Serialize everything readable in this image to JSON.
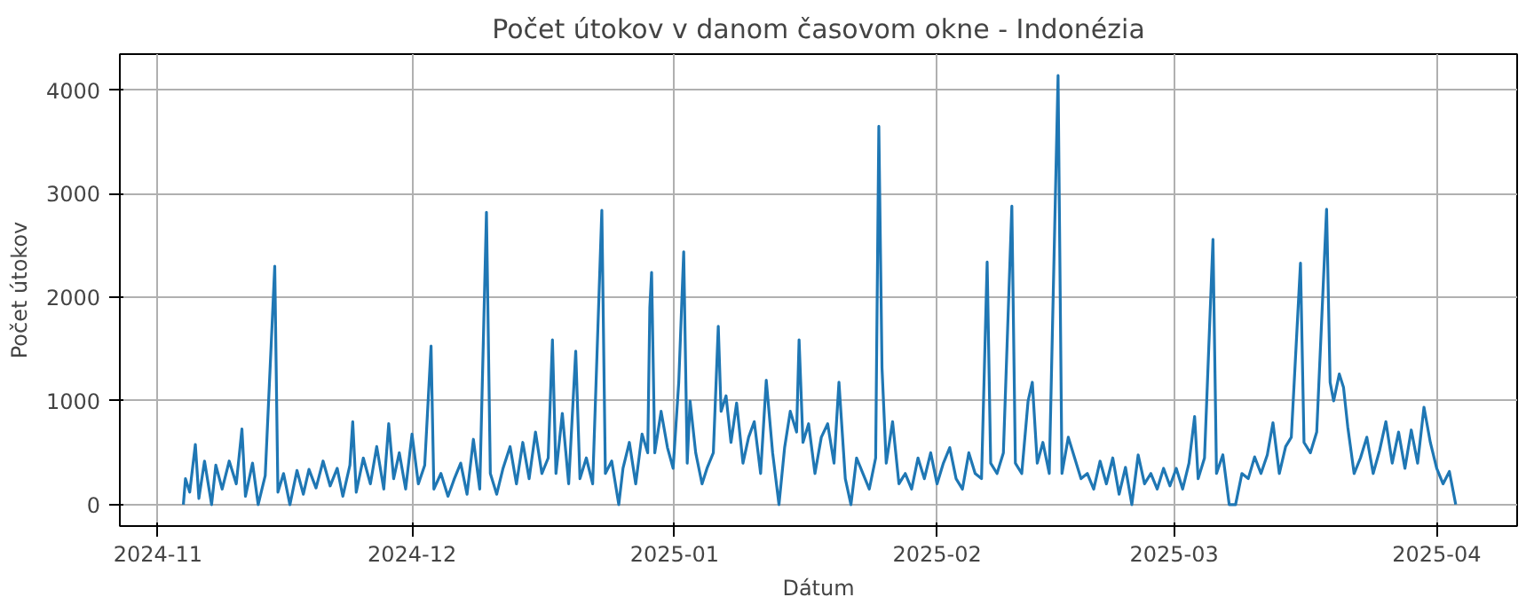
{
  "chart_data": {
    "type": "line",
    "title": "Počet útokov v danom časovom okne - Indonézia",
    "xlabel": "Dátum",
    "ylabel": "Počet útokov",
    "xlim": [
      "2024-10-27T12:00",
      "2025-04-10T12:00"
    ],
    "ylim": [
      -207,
      4347
    ],
    "xticks": [
      {
        "value": "2024-11-01",
        "label": "2024-11"
      },
      {
        "value": "2024-12-01",
        "label": "2024-12"
      },
      {
        "value": "2025-01-01",
        "label": "2025-01"
      },
      {
        "value": "2025-02-01",
        "label": "2025-02"
      },
      {
        "value": "2025-03-01",
        "label": "2025-03"
      },
      {
        "value": "2025-04-01",
        "label": "2025-04"
      }
    ],
    "yticks": [
      0,
      1000,
      2000,
      3000,
      4000
    ],
    "grid": true,
    "marker": "none",
    "line_style": "solid",
    "series": [
      {
        "color": "#1f77b4",
        "x": [
          "2024-11-04T00:00",
          "2024-11-04T06:00",
          "2024-11-04T18:00",
          "2024-11-05T10:00",
          "2024-11-05T20:00",
          "2024-11-06T12:00",
          "2024-11-07T08:00",
          "2024-11-07T20:00",
          "2024-11-08T14:00",
          "2024-11-09T10:00",
          "2024-11-10T06:00",
          "2024-11-10T22:00",
          "2024-11-11T08:00",
          "2024-11-12T04:00",
          "2024-11-12T20:00",
          "2024-11-13T16:00",
          "2024-11-14T19:00",
          "2024-11-15T04:00",
          "2024-11-15T20:00",
          "2024-11-16T14:00",
          "2024-11-17T10:00",
          "2024-11-18T04:00",
          "2024-11-18T20:00",
          "2024-11-19T16:00",
          "2024-11-20T12:00",
          "2024-11-21T08:00",
          "2024-11-22T04:00",
          "2024-11-22T20:00",
          "2024-11-23T16:00",
          "2024-11-24T00:00",
          "2024-11-24T10:00",
          "2024-11-25T06:00",
          "2024-11-26T02:00",
          "2024-11-26T20:00",
          "2024-11-27T16:00",
          "2024-11-28T06:00",
          "2024-11-28T20:00",
          "2024-11-29T12:00",
          "2024-11-30T06:00",
          "2024-12-01T00:00",
          "2024-12-01T18:00",
          "2024-12-02T12:00",
          "2024-12-03T06:00",
          "2024-12-03T14:00",
          "2024-12-04T10:00",
          "2024-12-05T06:00",
          "2024-12-06T00:00",
          "2024-12-06T18:00",
          "2024-12-07T12:00",
          "2024-12-08T06:00",
          "2024-12-09T00:00",
          "2024-12-09T19:00",
          "2024-12-10T06:00",
          "2024-12-11T00:00",
          "2024-12-11T18:00",
          "2024-12-12T14:00",
          "2024-12-13T08:00",
          "2024-12-14T02:00",
          "2024-12-14T20:00",
          "2024-12-15T14:00",
          "2024-12-16T08:00",
          "2024-12-17T02:00",
          "2024-12-17T14:00",
          "2024-12-18T00:00",
          "2024-12-18T18:00",
          "2024-12-19T12:00",
          "2024-12-20T08:00",
          "2024-12-20T20:00",
          "2024-12-21T14:00",
          "2024-12-22T08:00",
          "2024-12-23T10:00",
          "2024-12-23T20:00",
          "2024-12-24T14:00",
          "2024-12-25T10:00",
          "2024-12-25T22:00",
          "2024-12-26T16:00",
          "2024-12-27T10:00",
          "2024-12-28T04:00",
          "2024-12-28T20:00",
          "2024-12-29T02:00",
          "2024-12-29T07:00",
          "2024-12-29T16:00",
          "2024-12-30T10:00",
          "2024-12-31T04:00",
          "2024-12-31T20:00",
          "2025-01-01T12:00",
          "2025-01-02T02:00",
          "2025-01-02T12:00",
          "2025-01-02T20:00",
          "2025-01-03T12:00",
          "2025-01-04T06:00",
          "2025-01-04T20:00",
          "2025-01-05T14:00",
          "2025-01-06T04:00",
          "2025-01-06T12:00",
          "2025-01-07T02:00",
          "2025-01-07T16:00",
          "2025-01-08T08:00",
          "2025-01-09T02:00",
          "2025-01-09T18:00",
          "2025-01-10T10:00",
          "2025-01-11T04:00",
          "2025-01-11T20:00",
          "2025-01-12T14:00",
          "2025-01-13T08:00",
          "2025-01-14T00:00",
          "2025-01-14T16:00",
          "2025-01-15T10:00",
          "2025-01-15T17:00",
          "2025-01-16T04:00",
          "2025-01-16T20:00",
          "2025-01-17T14:00",
          "2025-01-18T08:00",
          "2025-01-19T02:00",
          "2025-01-19T20:00",
          "2025-01-20T10:00",
          "2025-01-21T04:00",
          "2025-01-21T20:00",
          "2025-01-22T12:00",
          "2025-01-23T06:00",
          "2025-01-24T00:00",
          "2025-01-24T18:00",
          "2025-01-25T03:00",
          "2025-01-25T12:00",
          "2025-01-26T00:00",
          "2025-01-26T18:00",
          "2025-01-27T12:00",
          "2025-01-28T06:00",
          "2025-01-29T00:00",
          "2025-01-29T18:00",
          "2025-01-30T12:00",
          "2025-01-31T06:00",
          "2025-02-01T00:00",
          "2025-02-01T18:00",
          "2025-02-02T12:00",
          "2025-02-03T06:00",
          "2025-02-04T00:00",
          "2025-02-04T18:00",
          "2025-02-05T12:00",
          "2025-02-06T06:00",
          "2025-02-06T22:00",
          "2025-02-07T08:00",
          "2025-02-08T02:00",
          "2025-02-08T20:00",
          "2025-02-09T20:00",
          "2025-02-10T06:00",
          "2025-02-11T00:00",
          "2025-02-11T18:00",
          "2025-02-12T06:00",
          "2025-02-12T20:00",
          "2025-02-13T12:00",
          "2025-02-14T06:00",
          "2025-02-15T07:00",
          "2025-02-15T18:00",
          "2025-02-16T12:00",
          "2025-02-17T06:00",
          "2025-02-18T00:00",
          "2025-02-18T18:00",
          "2025-02-19T12:00",
          "2025-02-20T06:00",
          "2025-02-21T00:00",
          "2025-02-21T18:00",
          "2025-02-22T12:00",
          "2025-02-23T06:00",
          "2025-02-24T00:00",
          "2025-02-24T18:00",
          "2025-02-25T12:00",
          "2025-02-26T06:00",
          "2025-02-27T00:00",
          "2025-02-27T18:00",
          "2025-02-28T12:00",
          "2025-03-01T06:00",
          "2025-03-02T00:00",
          "2025-03-02T18:00",
          "2025-03-03T10:00",
          "2025-03-03T20:00",
          "2025-03-04T14:00",
          "2025-03-05T14:00",
          "2025-03-06T00:00",
          "2025-03-06T18:00",
          "2025-03-07T12:00",
          "2025-03-08T06:00",
          "2025-03-09T00:00",
          "2025-03-09T18:00",
          "2025-03-10T12:00",
          "2025-03-11T06:00",
          "2025-03-12T00:00",
          "2025-03-12T16:00",
          "2025-03-13T10:00",
          "2025-03-14T04:00",
          "2025-03-14T20:00",
          "2025-03-15T22:00",
          "2025-03-16T08:00",
          "2025-03-17T02:00",
          "2025-03-17T20:00",
          "2025-03-19T00:00",
          "2025-03-19T10:00",
          "2025-03-19T20:00",
          "2025-03-20T12:00",
          "2025-03-21T00:00",
          "2025-03-21T12:00",
          "2025-03-22T06:00",
          "2025-03-23T00:00",
          "2025-03-23T18:00",
          "2025-03-24T12:00",
          "2025-03-25T06:00",
          "2025-03-26T00:00",
          "2025-03-26T18:00",
          "2025-03-27T12:00",
          "2025-03-28T06:00",
          "2025-03-29T00:00",
          "2025-03-29T18:00",
          "2025-03-30T12:00",
          "2025-03-31T06:00",
          "2025-04-01T00:00",
          "2025-04-01T18:00",
          "2025-04-02T12:00",
          "2025-04-03T06:00"
        ],
        "values": [
          0,
          250,
          120,
          580,
          60,
          420,
          0,
          380,
          150,
          420,
          200,
          730,
          80,
          400,
          0,
          280,
          2300,
          120,
          300,
          0,
          330,
          100,
          340,
          160,
          420,
          180,
          350,
          80,
          380,
          800,
          120,
          450,
          200,
          560,
          150,
          780,
          250,
          500,
          150,
          680,
          200,
          380,
          1530,
          150,
          300,
          80,
          250,
          400,
          100,
          630,
          150,
          2820,
          300,
          100,
          350,
          560,
          200,
          600,
          250,
          700,
          300,
          450,
          1590,
          300,
          880,
          200,
          1480,
          250,
          450,
          200,
          2840,
          300,
          420,
          0,
          350,
          600,
          200,
          680,
          500,
          1900,
          2240,
          500,
          900,
          550,
          350,
          1180,
          2440,
          400,
          1000,
          500,
          200,
          350,
          500,
          1720,
          900,
          1050,
          600,
          980,
          400,
          650,
          800,
          300,
          1200,
          500,
          0,
          550,
          900,
          700,
          1590,
          600,
          780,
          300,
          650,
          780,
          400,
          1180,
          250,
          0,
          450,
          300,
          150,
          450,
          3650,
          1320,
          400,
          800,
          200,
          300,
          150,
          450,
          250,
          500,
          200,
          400,
          550,
          250,
          150,
          500,
          300,
          250,
          2340,
          400,
          300,
          500,
          2880,
          400,
          300,
          1000,
          1180,
          400,
          600,
          300,
          4140,
          300,
          650,
          450,
          250,
          300,
          150,
          420,
          200,
          450,
          100,
          360,
          0,
          480,
          200,
          300,
          150,
          350,
          180,
          350,
          150,
          400,
          850,
          250,
          450,
          2560,
          300,
          480,
          0,
          0,
          300,
          250,
          460,
          300,
          480,
          790,
          300,
          560,
          650,
          2330,
          600,
          500,
          700,
          2850,
          1180,
          1000,
          1260,
          1130,
          750,
          300,
          450,
          650,
          300,
          520,
          800,
          400,
          700,
          350,
          720,
          400,
          940,
          600,
          350,
          200,
          320,
          0
        ]
      }
    ]
  }
}
